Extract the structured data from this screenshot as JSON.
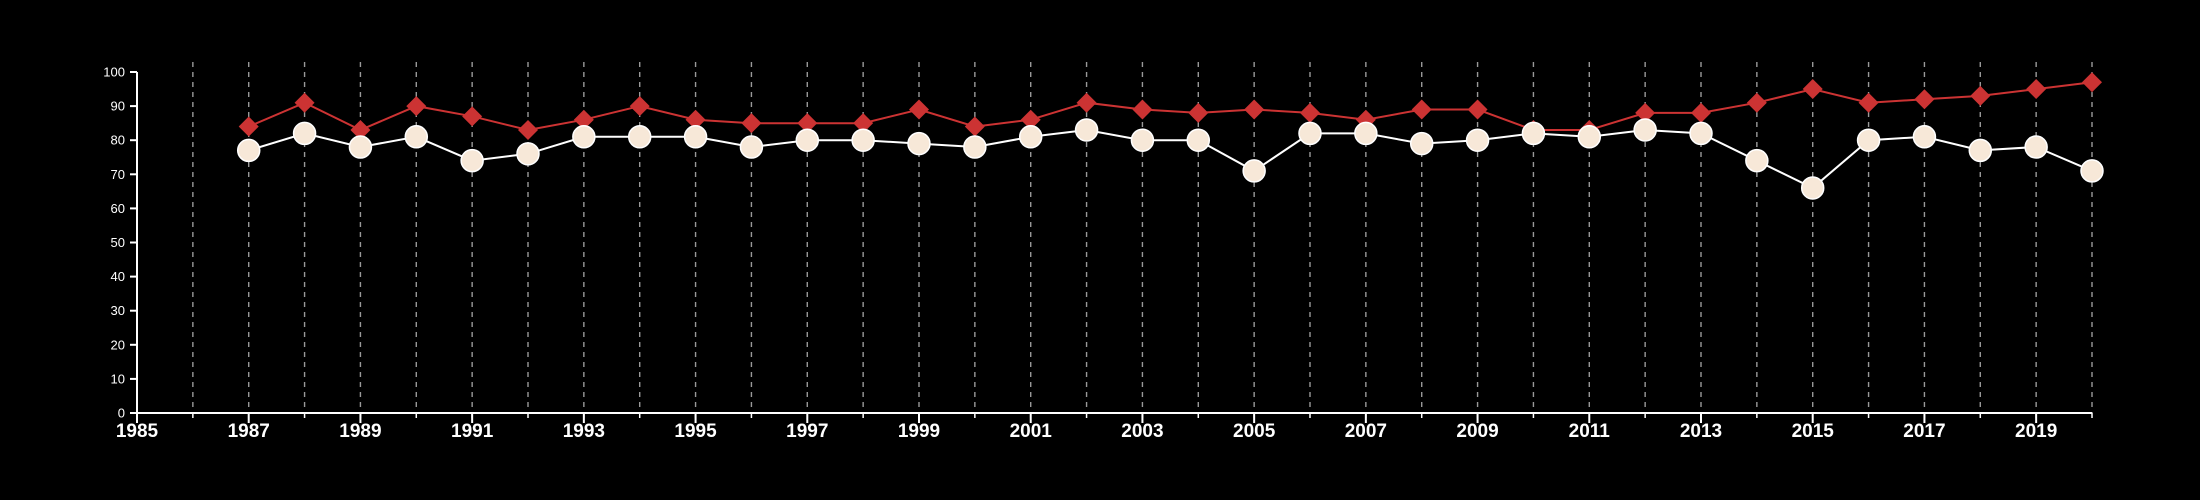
{
  "chart_data": {
    "type": "line",
    "title": "",
    "xlabel": "",
    "ylabel": "",
    "xlim": [
      1985,
      2020
    ],
    "ylim": [
      0,
      100
    ],
    "x_ticks": [
      1985,
      1987,
      1989,
      1991,
      1993,
      1995,
      1997,
      1999,
      2001,
      2003,
      2005,
      2007,
      2009,
      2011,
      2013,
      2015,
      2017,
      2019
    ],
    "y_ticks": [
      0,
      10,
      20,
      30,
      40,
      50,
      60,
      70,
      80,
      90,
      100
    ],
    "x_tick_labels": [
      "1985",
      "1987",
      "1989",
      "1991",
      "1993",
      "1995",
      "1997",
      "1999",
      "2001",
      "2003",
      "2005",
      "2007",
      "2009",
      "2011",
      "2013",
      "2015",
      "2017",
      "2019"
    ],
    "y_tick_labels": [
      "0",
      "10",
      "20",
      "30",
      "40",
      "50",
      "60",
      "70",
      "80",
      "90",
      "100"
    ],
    "grid": "vertical dashed lines at every year",
    "legend": "none",
    "x": [
      1987,
      1988,
      1989,
      1990,
      1991,
      1992,
      1993,
      1994,
      1995,
      1996,
      1997,
      1998,
      1999,
      2000,
      2001,
      2002,
      2003,
      2004,
      2005,
      2006,
      2007,
      2008,
      2009,
      2010,
      2011,
      2012,
      2013,
      2014,
      2015,
      2016,
      2017,
      2018,
      2019,
      2020
    ],
    "series": [
      {
        "marker": "diamond",
        "color": "#cc3333",
        "values": [
          84,
          91,
          83,
          90,
          87,
          83,
          86,
          90,
          86,
          85,
          85,
          85,
          89,
          84,
          86,
          91,
          89,
          88,
          89,
          88,
          86,
          89,
          89,
          83,
          83,
          88,
          88,
          91,
          95,
          91,
          92,
          93,
          95,
          97
        ]
      },
      {
        "marker": "circle",
        "color": "#f7e8d8",
        "line_color": "#ffffff",
        "values": [
          77,
          82,
          78,
          81,
          74,
          76,
          81,
          81,
          81,
          78,
          80,
          80,
          79,
          78,
          81,
          83,
          80,
          80,
          71,
          82,
          82,
          79,
          80,
          82,
          81,
          83,
          82,
          74,
          66,
          80,
          81,
          77,
          78,
          71
        ]
      }
    ]
  }
}
